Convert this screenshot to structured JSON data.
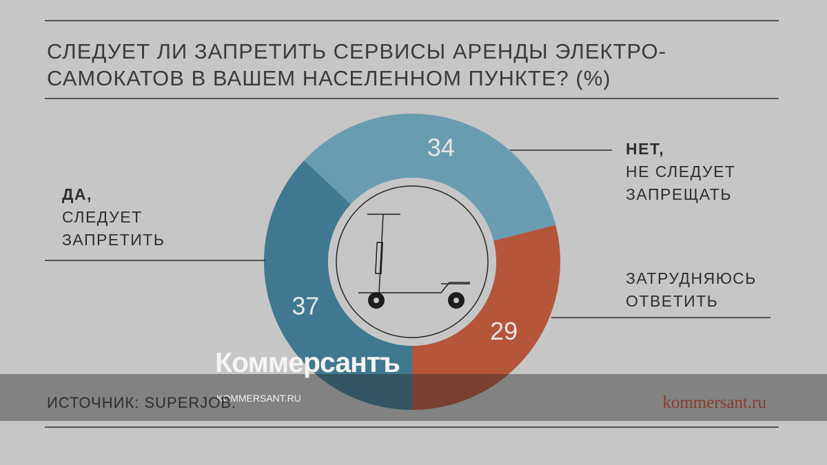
{
  "chart_data": {
    "type": "donut",
    "title": [
      "СЛЕДУЕТ ЛИ ЗАПРЕТИТЬ СЕРВИСЫ АРЕНДЫ ЭЛЕКТРО-",
      "САМОКАТОВ В ВАШЕМ НАСЕЛЕННОМ ПУНКТЕ? (%)"
    ],
    "categories": [
      [
        "ДА,",
        "СЛЕДУЕТ",
        "ЗАПРЕТИТЬ"
      ],
      [
        "НЕТ,",
        "НЕ СЛЕДУЕТ",
        "ЗАПРЕЩАТЬ"
      ],
      [
        "ЗАТРУДНЯЮСЬ",
        "ОТВЕТИТЬ"
      ]
    ],
    "values": [
      37,
      34,
      29
    ],
    "colors": [
      "#3f7890",
      "#6a9cb1",
      "#b5553a"
    ],
    "source": "ИСТОЧНИК: SUPERJOB.",
    "site": "kommersant.ru",
    "watermark": {
      "brand": "Коммерсантъ",
      "url": "KOMMERSANT.RU"
    }
  }
}
